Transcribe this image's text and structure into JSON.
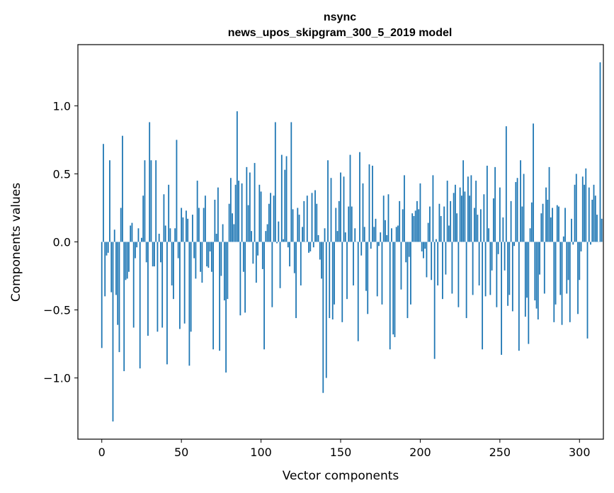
{
  "chart_data": {
    "type": "bar",
    "title": "nsync",
    "subtitle": "news_upos_skipgram_300_5_2019 model",
    "xlabel": "Vector components",
    "ylabel": "Components values",
    "xlim": [
      -15,
      315
    ],
    "ylim": [
      -1.45,
      1.45
    ],
    "xticks": [
      0,
      50,
      100,
      150,
      200,
      250,
      300
    ],
    "yticks": [
      -1.0,
      -0.5,
      0.0,
      0.5,
      1.0
    ],
    "ytick_labels": [
      "−1.0",
      "−0.5",
      "0.0",
      "0.5",
      "1.0"
    ],
    "bar_color": "#1f77b4",
    "values": [
      -0.78,
      0.72,
      -0.4,
      -0.1,
      -0.08,
      0.6,
      -0.37,
      -1.32,
      0.09,
      -0.39,
      -0.61,
      -0.81,
      0.25,
      0.78,
      -0.95,
      -0.28,
      -0.27,
      -0.22,
      0.12,
      0.14,
      -0.63,
      -0.12,
      -0.04,
      0.1,
      -0.93,
      0.03,
      0.34,
      0.6,
      -0.15,
      -0.69,
      0.88,
      0.6,
      -0.18,
      -0.18,
      0.6,
      -0.66,
      0.06,
      -0.15,
      -0.63,
      0.35,
      0.12,
      -0.9,
      0.42,
      0.1,
      -0.32,
      -0.42,
      0.1,
      0.75,
      -0.12,
      -0.64,
      0.25,
      0.18,
      -0.6,
      0.23,
      0.17,
      -0.91,
      -0.66,
      0.2,
      -0.12,
      -0.27,
      0.45,
      0.25,
      -0.22,
      -0.3,
      0.25,
      0.34,
      -0.18,
      -0.19,
      -0.07,
      -0.22,
      -0.79,
      0.31,
      0.06,
      0.4,
      -0.8,
      -0.25,
      0.13,
      -0.43,
      -0.96,
      -0.42,
      0.28,
      0.47,
      0.21,
      0.13,
      0.42,
      0.96,
      0.45,
      -0.54,
      0.43,
      -0.22,
      -0.52,
      0.55,
      0.27,
      0.51,
      0.08,
      -0.16,
      0.58,
      -0.3,
      -0.1,
      0.42,
      0.37,
      -0.2,
      -0.79,
      0.08,
      0.13,
      0.28,
      0.36,
      -0.48,
      0.34,
      0.88,
      -0.01,
      0.15,
      -0.34,
      0.64,
      0.02,
      0.53,
      0.63,
      -0.04,
      -0.18,
      0.88,
      0.24,
      -0.23,
      -0.56,
      0.25,
      0.2,
      -0.32,
      0.11,
      0.3,
      0.0,
      0.34,
      -0.08,
      -0.07,
      0.36,
      -0.04,
      0.38,
      0.28,
      0.05,
      -0.13,
      -0.27,
      -1.11,
      0.1,
      -1.0,
      0.6,
      -0.56,
      0.47,
      -0.57,
      -0.46,
      0.25,
      0.08,
      0.3,
      0.51,
      -0.59,
      0.48,
      0.07,
      -0.42,
      0.26,
      0.64,
      0.26,
      -0.32,
      0.1,
      0.0,
      -0.73,
      0.66,
      -0.1,
      0.43,
      0.11,
      -0.36,
      -0.53,
      0.57,
      -0.05,
      0.56,
      0.11,
      0.17,
      -0.4,
      -0.03,
      0.07,
      -0.46,
      0.34,
      0.16,
      0.05,
      0.35,
      -0.79,
      0.1,
      -0.68,
      -0.7,
      0.11,
      0.12,
      0.3,
      -0.35,
      0.24,
      0.49,
      -0.15,
      -0.56,
      -0.11,
      -0.46,
      0.21,
      0.19,
      0.23,
      0.3,
      0.24,
      0.43,
      -0.07,
      -0.12,
      -0.05,
      -0.26,
      0.14,
      0.26,
      -0.28,
      0.49,
      -0.86,
      0.02,
      -0.32,
      0.28,
      0.19,
      -0.42,
      0.26,
      -0.24,
      0.45,
      0.12,
      0.3,
      -0.38,
      0.36,
      0.42,
      0.21,
      -0.48,
      0.4,
      0.34,
      0.6,
      0.37,
      -0.56,
      0.48,
      0.34,
      0.49,
      -0.39,
      0.25,
      0.45,
      0.2,
      -0.32,
      0.24,
      -0.79,
      0.35,
      -0.4,
      0.56,
      0.1,
      -0.39,
      -0.21,
      0.32,
      0.55,
      -0.48,
      -0.09,
      0.4,
      -0.83,
      0.18,
      -0.21,
      0.85,
      -0.47,
      -0.39,
      0.3,
      -0.51,
      -0.03,
      0.44,
      0.47,
      -0.8,
      0.6,
      0.26,
      0.5,
      -0.55,
      -0.41,
      -0.75,
      0.1,
      0.29,
      0.87,
      -0.43,
      -0.49,
      -0.57,
      -0.24,
      0.21,
      0.28,
      -0.38,
      0.4,
      0.31,
      0.55,
      0.18,
      0.25,
      -0.59,
      -0.46,
      0.27,
      0.26,
      -0.39,
      -0.61,
      0.04,
      0.25,
      -0.38,
      -0.28,
      -0.59,
      0.17,
      -0.02,
      0.42,
      0.5,
      -0.53,
      -0.28,
      -0.07,
      0.48,
      0.42,
      0.54,
      -0.71,
      0.4,
      -0.02,
      0.31,
      0.42,
      0.34,
      0.2,
      0.0,
      1.32,
      0.17
    ]
  }
}
